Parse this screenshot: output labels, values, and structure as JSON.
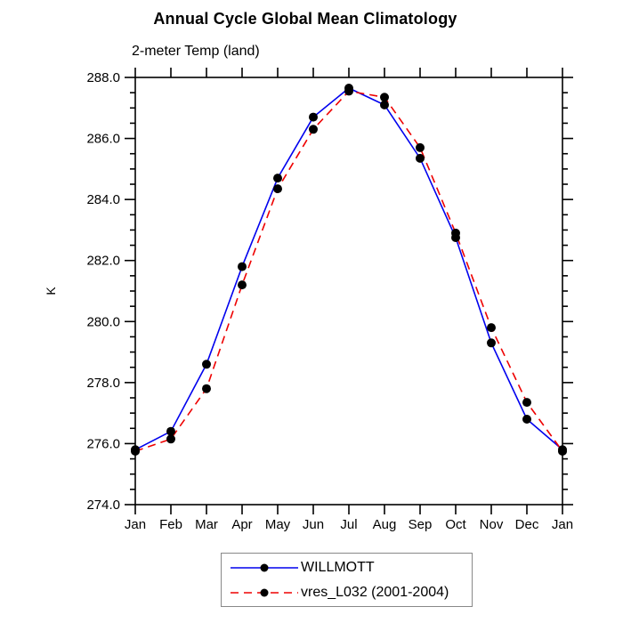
{
  "header": {
    "title": "Annual Cycle Global Mean Climatology",
    "subtitle": "2-meter Temp (land)"
  },
  "axes": {
    "y_label": "K",
    "y_tick_labels": [
      "274.0",
      "276.0",
      "278.0",
      "280.0",
      "282.0",
      "284.0",
      "286.0",
      "288.0"
    ],
    "x_tick_labels": [
      "Jan",
      "Feb",
      "Mar",
      "Apr",
      "May",
      "Jun",
      "Jul",
      "Aug",
      "Sep",
      "Oct",
      "Nov",
      "Dec",
      "Jan"
    ]
  },
  "legend": {
    "entries": [
      {
        "label": "WILLMOTT",
        "color": "#0000ee",
        "style": "solid",
        "marker": "black-dot"
      },
      {
        "label": "vres_L032 (2001-2004)",
        "color": "#ee0000",
        "style": "dashed",
        "marker": "black-dot"
      }
    ]
  },
  "colors": {
    "axis": "#000000",
    "marker": "#000000",
    "series_willmott": "#0000ee",
    "series_vres": "#ee0000",
    "legend_border": "#888888"
  },
  "chart_data": {
    "type": "line",
    "title": "Annual Cycle Global Mean Climatology",
    "subtitle": "2-meter Temp (land)",
    "xlabel": "",
    "ylabel": "K",
    "x": [
      "Jan",
      "Feb",
      "Mar",
      "Apr",
      "May",
      "Jun",
      "Jul",
      "Aug",
      "Sep",
      "Oct",
      "Nov",
      "Dec",
      "Jan"
    ],
    "ylim": [
      274.0,
      288.0
    ],
    "y_major_step": 2.0,
    "y_minor_step": 0.5,
    "grid": false,
    "legend_position": "bottom-center",
    "series": [
      {
        "name": "WILLMOTT",
        "color": "#0000ee",
        "line_style": "solid",
        "marker": "filled-circle",
        "marker_color": "#000000",
        "values": [
          275.8,
          276.4,
          278.6,
          281.8,
          284.7,
          286.7,
          287.65,
          287.1,
          285.35,
          282.75,
          279.3,
          276.8,
          275.8
        ]
      },
      {
        "name": "vres_L032 (2001-2004)",
        "color": "#ee0000",
        "line_style": "dashed",
        "marker": "filled-circle",
        "marker_color": "#000000",
        "values": [
          275.75,
          276.15,
          277.8,
          281.2,
          284.35,
          286.3,
          287.55,
          287.35,
          285.7,
          282.9,
          279.8,
          277.35,
          275.75
        ]
      }
    ]
  }
}
